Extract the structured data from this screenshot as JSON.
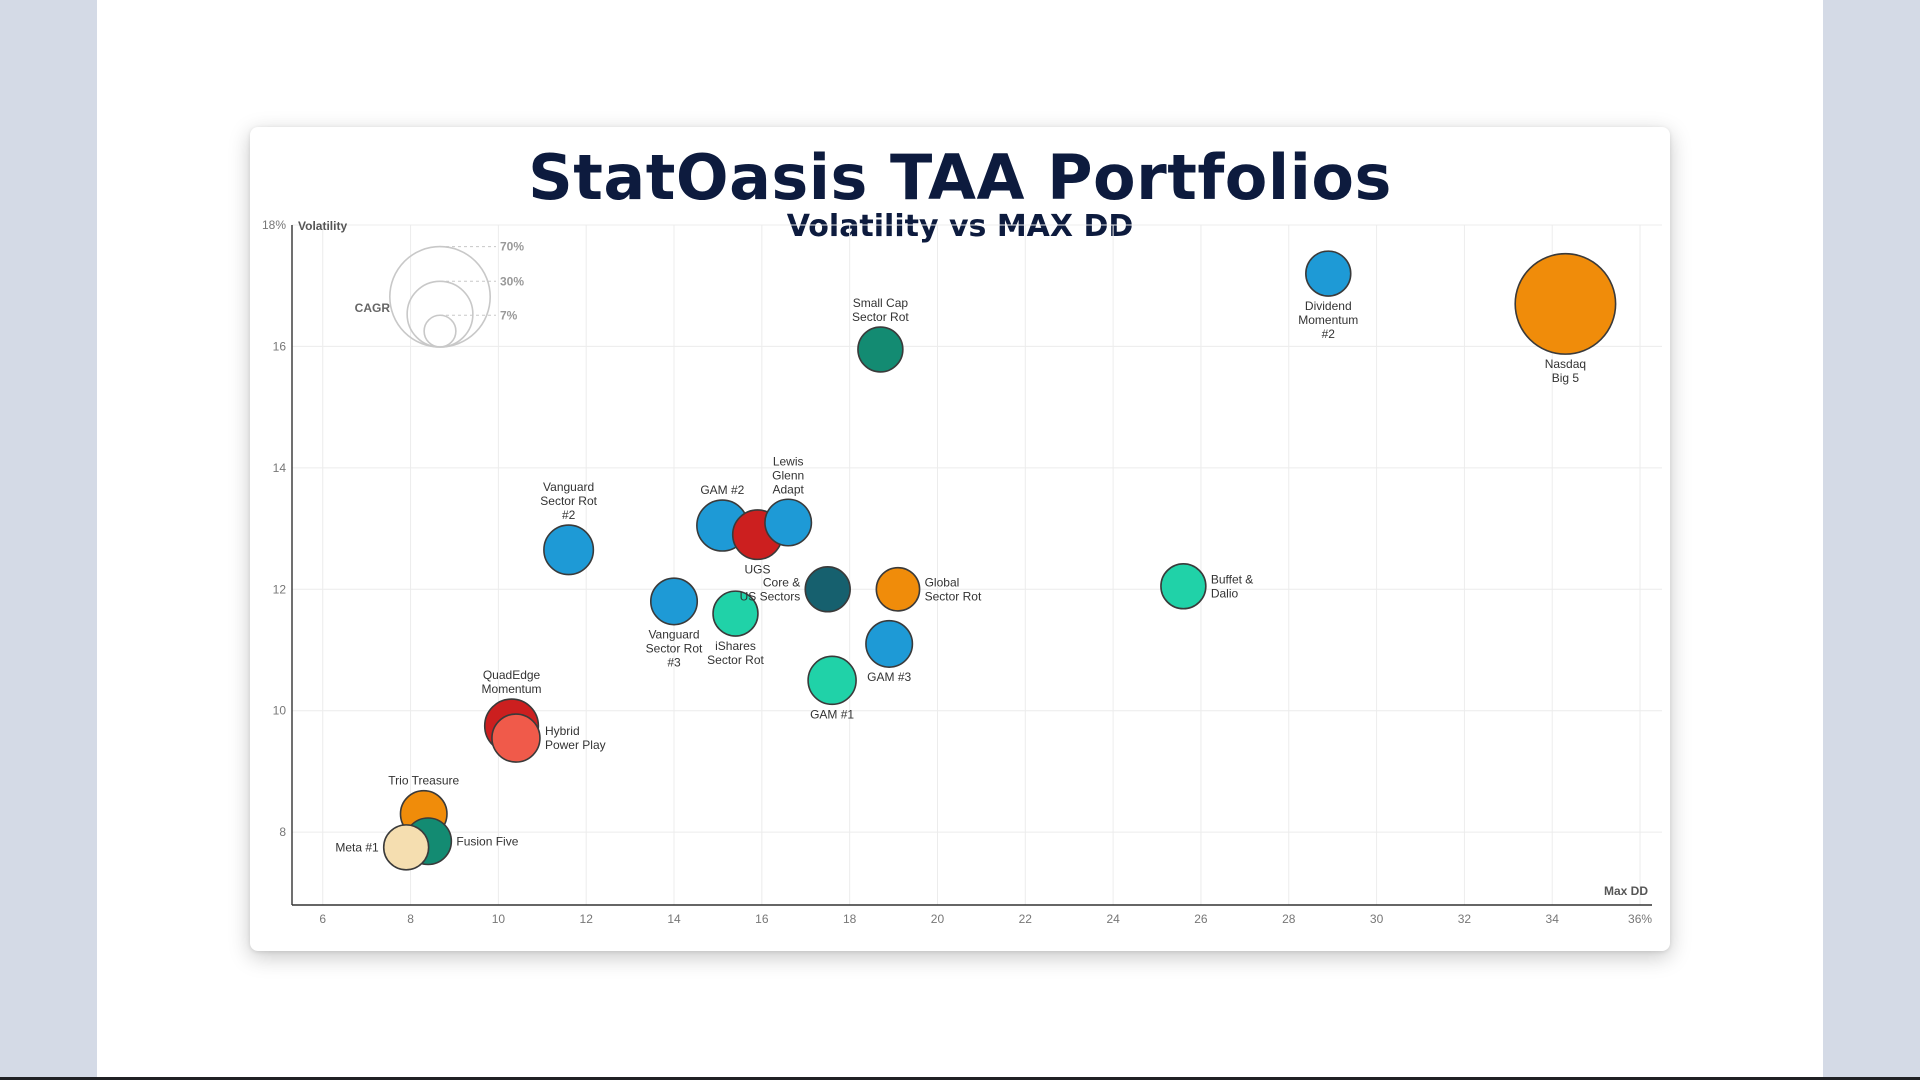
{
  "chart_data": {
    "type": "scatter",
    "title": "StatOasis TAA Portfolios",
    "subtitle": "Volatility vs MAX DD",
    "xlabel": "Max DD",
    "ylabel": "Volatility",
    "xlim": [
      5.3,
      36.5
    ],
    "ylim": [
      6.8,
      18
    ],
    "x_ticks": [
      {
        "value": 6,
        "label": "6"
      },
      {
        "value": 8,
        "label": "8"
      },
      {
        "value": 10,
        "label": "10"
      },
      {
        "value": 12,
        "label": "12"
      },
      {
        "value": 14,
        "label": "14"
      },
      {
        "value": 16,
        "label": "16"
      },
      {
        "value": 18,
        "label": "18"
      },
      {
        "value": 20,
        "label": "20"
      },
      {
        "value": 22,
        "label": "22"
      },
      {
        "value": 24,
        "label": "24"
      },
      {
        "value": 26,
        "label": "26"
      },
      {
        "value": 28,
        "label": "28"
      },
      {
        "value": 30,
        "label": "30"
      },
      {
        "value": 32,
        "label": "32"
      },
      {
        "value": 34,
        "label": "34"
      },
      {
        "value": 36,
        "label": "36%"
      }
    ],
    "y_ticks": [
      {
        "value": 8,
        "label": "8"
      },
      {
        "value": 10,
        "label": "10"
      },
      {
        "value": 12,
        "label": "12"
      },
      {
        "value": 14,
        "label": "14"
      },
      {
        "value": 16,
        "label": "16"
      },
      {
        "value": 18,
        "label": "18%"
      }
    ],
    "grid": true,
    "size_legend": {
      "title": "CAGR",
      "entries": [
        {
          "value": 70,
          "label": "70%"
        },
        {
          "value": 30,
          "label": "30%"
        },
        {
          "value": 7,
          "label": "7%"
        }
      ]
    },
    "colors": {
      "blue": "#1e9ad6",
      "teal": "#138b72",
      "darkteal": "#16606e",
      "mint": "#20d2a8",
      "orange": "#f08c0a",
      "red": "#cc1f1f",
      "salmon": "#f05a4a",
      "cream": "#f5deb0"
    },
    "points": [
      {
        "name": "Nasdaq Big 5",
        "label": [
          "Nasdaq",
          "Big 5"
        ],
        "label_pos": "below",
        "x": 34.3,
        "y": 16.7,
        "cagr": 70,
        "color": "orange"
      },
      {
        "name": "Dividend Momentum #2",
        "label": [
          "Dividend",
          "Momentum",
          "#2"
        ],
        "label_pos": "below",
        "x": 28.9,
        "y": 17.2,
        "cagr": 14,
        "color": "blue"
      },
      {
        "name": "Small Cap Sector Rot",
        "label": [
          "Small Cap",
          "Sector Rot"
        ],
        "label_pos": "above",
        "x": 18.7,
        "y": 15.95,
        "cagr": 14,
        "color": "teal"
      },
      {
        "name": "Vanguard Sector Rot #2",
        "label": [
          "Vanguard",
          "Sector Rot",
          "#2"
        ],
        "label_pos": "above",
        "x": 11.6,
        "y": 12.65,
        "cagr": 17,
        "color": "blue"
      },
      {
        "name": "GAM #2",
        "label": [
          "GAM #2"
        ],
        "label_pos": "above",
        "x": 15.1,
        "y": 13.05,
        "cagr": 18,
        "color": "blue"
      },
      {
        "name": "Lewis Glenn Adapt",
        "label": [
          "Lewis",
          "Glenn",
          "Adapt"
        ],
        "label_pos": "above",
        "x": 16.6,
        "y": 13.1,
        "cagr": 15,
        "color": "blue"
      },
      {
        "name": "UGS",
        "label": [
          "UGS"
        ],
        "label_pos": "below",
        "x": 15.9,
        "y": 12.9,
        "cagr": 17,
        "color": "red"
      },
      {
        "name": "Core & US Sectors",
        "label": [
          "Core &",
          "US Sectors"
        ],
        "label_pos": "left",
        "x": 17.5,
        "y": 12.0,
        "cagr": 14,
        "color": "darkteal"
      },
      {
        "name": "Global Sector Rot",
        "label": [
          "Global",
          "Sector Rot"
        ],
        "label_pos": "right",
        "x": 19.1,
        "y": 12.0,
        "cagr": 13,
        "color": "orange"
      },
      {
        "name": "Vanguard Sector Rot #3",
        "label": [
          "Vanguard",
          "Sector Rot",
          "#3"
        ],
        "label_pos": "below",
        "x": 14.0,
        "y": 11.8,
        "cagr": 15,
        "color": "blue"
      },
      {
        "name": "iShares Sector Rot",
        "label": [
          "iShares",
          "Sector Rot"
        ],
        "label_pos": "below",
        "x": 15.4,
        "y": 11.6,
        "cagr": 14,
        "color": "mint"
      },
      {
        "name": "GAM #3",
        "label": [
          "GAM #3"
        ],
        "label_pos": "below",
        "x": 18.9,
        "y": 11.1,
        "cagr": 15,
        "color": "blue"
      },
      {
        "name": "GAM #1",
        "label": [
          "GAM #1"
        ],
        "label_pos": "below",
        "x": 17.6,
        "y": 10.5,
        "cagr": 16,
        "color": "mint"
      },
      {
        "name": "Buffet & Dalio",
        "label": [
          "Buffet &",
          "Dalio"
        ],
        "label_pos": "right",
        "x": 25.6,
        "y": 12.05,
        "cagr": 14,
        "color": "mint"
      },
      {
        "name": "QuadEdge Momentum",
        "label": [
          "QuadEdge",
          "Momentum"
        ],
        "label_pos": "above",
        "x": 10.3,
        "y": 9.75,
        "cagr": 20,
        "color": "red"
      },
      {
        "name": "Hybrid Power Play",
        "label": [
          "Hybrid",
          "Power Play"
        ],
        "label_pos": "right",
        "x": 10.4,
        "y": 9.55,
        "cagr": 16,
        "color": "salmon"
      },
      {
        "name": "Trio Treasure",
        "label": [
          "Trio Treasure"
        ],
        "label_pos": "above",
        "x": 8.3,
        "y": 8.3,
        "cagr": 15,
        "color": "orange"
      },
      {
        "name": "Meta #1",
        "label": [
          "Meta #1"
        ],
        "label_pos": "left",
        "x": 7.9,
        "y": 7.75,
        "cagr": 14,
        "color": "cream"
      },
      {
        "name": "Fusion Five",
        "label": [
          "Fusion Five"
        ],
        "label_pos": "right",
        "x": 8.4,
        "y": 7.85,
        "cagr": 15,
        "color": "teal"
      }
    ]
  }
}
